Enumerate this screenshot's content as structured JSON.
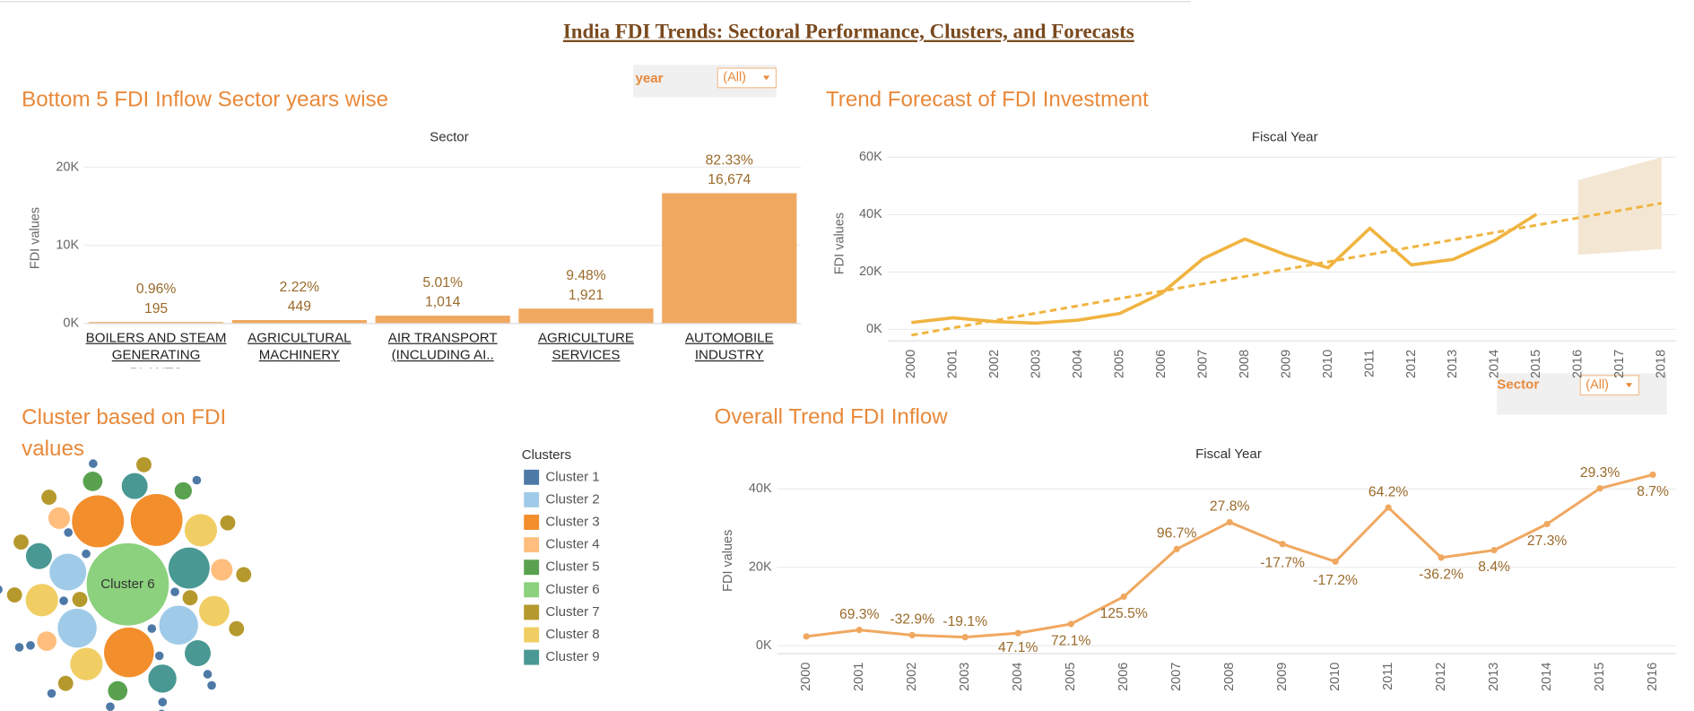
{
  "dashboard_title": "India FDI Trends: Sectoral Performance, Clusters, and Forecasts",
  "filters": [
    {
      "label": "year",
      "value": "(All)"
    },
    {
      "label": "Sector",
      "value": "(All)"
    }
  ],
  "chart_data": [
    {
      "type": "bar",
      "title": "Bottom 5 FDI Inflow Sector years wise",
      "x_label": "Sector",
      "y_label": "FDI values",
      "categories": [
        "BOILERS AND STEAM GENERATING PLANTS",
        "AGRICULTURAL MACHINERY",
        "AIR TRANSPORT (INCLUDING AI..",
        "AGRICULTURE SERVICES",
        "AUTOMOBILE INDUSTRY"
      ],
      "values": [
        195,
        449,
        1014,
        1921,
        16674
      ],
      "value_labels": [
        "195",
        "449",
        "1,014",
        "1,921",
        "16,674"
      ],
      "percent_labels": [
        "0.96%",
        "2.22%",
        "5.01%",
        "9.48%",
        "82.33%"
      ],
      "color": "#f0a860",
      "ylim": [
        0,
        22000
      ],
      "yticks": [
        {
          "value": 0,
          "label": "0K"
        },
        {
          "value": 10000,
          "label": "10K"
        },
        {
          "value": 20000,
          "label": "20K"
        }
      ],
      "grid": true
    },
    {
      "type": "line",
      "title": "Trend Forecast of FDI Investment",
      "x_label": "Fiscal Year",
      "y_label": "FDI values",
      "x": [
        2000,
        2001,
        2002,
        2003,
        2004,
        2005,
        2006,
        2007,
        2008,
        2009,
        2010,
        2011,
        2012,
        2013,
        2014,
        2015
      ],
      "values": [
        2388,
        4043,
        2713,
        2195,
        3229,
        5557,
        12530,
        24650,
        31500,
        25925,
        21466,
        35247,
        22488,
        24377,
        31032,
        40124
      ],
      "color": "#f0b440",
      "trend": {
        "x": [
          2000,
          2018
        ],
        "values": [
          -2000,
          44000
        ]
      },
      "forecast_band": {
        "x": [
          2016,
          2017,
          2018
        ],
        "upper": [
          52000,
          56000,
          60000
        ],
        "lower": [
          26000,
          27000,
          28000
        ],
        "color": "#f3e6d3"
      },
      "xlim": [
        2000,
        2018
      ],
      "xticks": [
        2000,
        2001,
        2002,
        2003,
        2004,
        2005,
        2006,
        2007,
        2008,
        2009,
        2010,
        2011,
        2012,
        2013,
        2014,
        2015,
        2016,
        2017,
        2018
      ],
      "ylim": [
        -4000,
        62000
      ],
      "yticks": [
        {
          "value": 0,
          "label": "0K"
        },
        {
          "value": 20000,
          "label": "20K"
        },
        {
          "value": 40000,
          "label": "40K"
        },
        {
          "value": 60000,
          "label": "60K"
        }
      ],
      "grid": true
    },
    {
      "type": "bubble",
      "title": "Cluster based on FDI values",
      "legend_title": "Clusters",
      "clusters": [
        {
          "name": "Cluster 1",
          "color": "#4e79a7"
        },
        {
          "name": "Cluster 2",
          "color": "#a0cbe8"
        },
        {
          "name": "Cluster 3",
          "color": "#f28e2b"
        },
        {
          "name": "Cluster 4",
          "color": "#ffbe7d"
        },
        {
          "name": "Cluster 5",
          "color": "#59a14f"
        },
        {
          "name": "Cluster 6",
          "color": "#8cd17d"
        },
        {
          "name": "Cluster 7",
          "color": "#b6992d"
        },
        {
          "name": "Cluster 8",
          "color": "#f1ce63"
        },
        {
          "name": "Cluster 9",
          "color": "#499894"
        }
      ],
      "bubbles": [
        {
          "cluster": 5,
          "value": 1444
        },
        {
          "cluster": 2,
          "value": 576
        },
        {
          "cluster": 2,
          "value": 576
        },
        {
          "cluster": 2,
          "value": 529
        },
        {
          "cluster": 8,
          "value": 361
        },
        {
          "cluster": 1,
          "value": 324
        },
        {
          "cluster": 1,
          "value": 324
        },
        {
          "cluster": 1,
          "value": 289
        },
        {
          "cluster": 7,
          "value": 225
        },
        {
          "cluster": 7,
          "value": 225
        },
        {
          "cluster": 7,
          "value": 225
        },
        {
          "cluster": 7,
          "value": 196
        },
        {
          "cluster": 8,
          "value": 169
        },
        {
          "cluster": 8,
          "value": 144
        },
        {
          "cluster": 8,
          "value": 144
        },
        {
          "cluster": 8,
          "value": 144
        },
        {
          "cluster": 3,
          "value": 100
        },
        {
          "cluster": 3,
          "value": 100
        },
        {
          "cluster": 3,
          "value": 81
        },
        {
          "cluster": 4,
          "value": 81
        },
        {
          "cluster": 4,
          "value": 81
        },
        {
          "cluster": 4,
          "value": 64
        },
        {
          "cluster": 6,
          "value": 49
        },
        {
          "cluster": 6,
          "value": 49
        },
        {
          "cluster": 6,
          "value": 49
        },
        {
          "cluster": 6,
          "value": 49
        },
        {
          "cluster": 6,
          "value": 49
        },
        {
          "cluster": 6,
          "value": 49
        },
        {
          "cluster": 6,
          "value": 49
        },
        {
          "cluster": 6,
          "value": 49
        },
        {
          "cluster": 6,
          "value": 49
        },
        {
          "cluster": 6,
          "value": 49
        },
        {
          "cluster": 0,
          "value": 16
        },
        {
          "cluster": 0,
          "value": 16
        },
        {
          "cluster": 0,
          "value": 16
        },
        {
          "cluster": 0,
          "value": 16
        },
        {
          "cluster": 0,
          "value": 16
        },
        {
          "cluster": 0,
          "value": 16
        },
        {
          "cluster": 0,
          "value": 16
        },
        {
          "cluster": 0,
          "value": 16
        },
        {
          "cluster": 0,
          "value": 16
        },
        {
          "cluster": 0,
          "value": 16
        },
        {
          "cluster": 0,
          "value": 16
        },
        {
          "cluster": 0,
          "value": 16
        },
        {
          "cluster": 0,
          "value": 16
        },
        {
          "cluster": 0,
          "value": 16
        },
        {
          "cluster": 0,
          "value": 16
        },
        {
          "cluster": 0,
          "value": 16
        },
        {
          "cluster": 0,
          "value": 16
        },
        {
          "cluster": 0,
          "value": 16
        }
      ]
    },
    {
      "type": "line",
      "title": "Overall Trend FDI Inflow",
      "x_label": "Fiscal Year",
      "y_label": "FDI values",
      "x": [
        2000,
        2001,
        2002,
        2003,
        2004,
        2005,
        2006,
        2007,
        2008,
        2009,
        2010,
        2011,
        2012,
        2013,
        2014,
        2015,
        2016
      ],
      "values": [
        2388,
        4043,
        2713,
        2195,
        3229,
        5557,
        12530,
        24650,
        31500,
        25925,
        21466,
        35247,
        22488,
        24377,
        31032,
        40124,
        43615
      ],
      "growth_labels": [
        null,
        "69.3%",
        "-32.9%",
        "-19.1%",
        "47.1%",
        "72.1%",
        "125.5%",
        "96.7%",
        "27.8%",
        "-17.7%",
        "-17.2%",
        "64.2%",
        "-36.2%",
        "8.4%",
        "27.3%",
        "29.3%",
        "8.7%"
      ],
      "color": "#f0a860",
      "markers": true,
      "xlim": [
        2000,
        2016
      ],
      "xticks": [
        2000,
        2001,
        2002,
        2003,
        2004,
        2005,
        2006,
        2007,
        2008,
        2009,
        2010,
        2011,
        2012,
        2013,
        2014,
        2015,
        2016
      ],
      "ylim": [
        -2000,
        46000
      ],
      "yticks": [
        {
          "value": 0,
          "label": "0K"
        },
        {
          "value": 20000,
          "label": "20K"
        },
        {
          "value": 40000,
          "label": "40K"
        }
      ],
      "grid": true
    }
  ]
}
